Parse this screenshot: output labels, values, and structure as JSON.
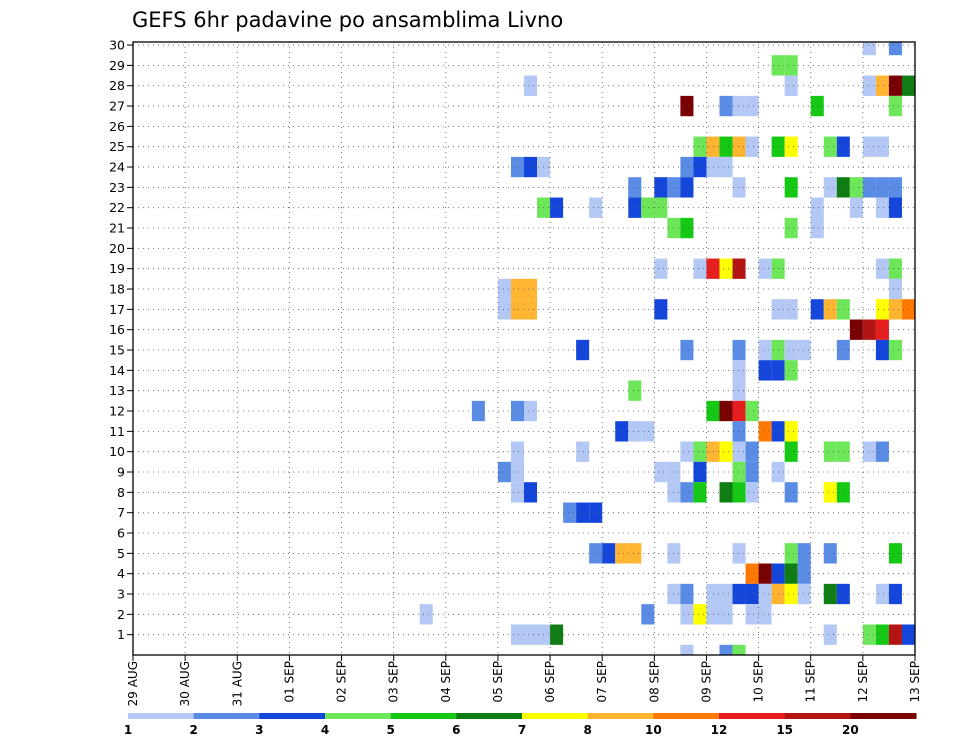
{
  "chart_data": {
    "type": "heatmap",
    "title": "GEFS 6hr padavine po ansamblima Livno",
    "xlabel": "",
    "ylabel": "",
    "x_tick_labels": [
      "29 AUG",
      "30 AUG",
      "31 AUG",
      "01 SEP",
      "02 SEP",
      "03 SEP",
      "04 SEP",
      "05 SEP",
      "06 SEP",
      "07 SEP",
      "08 SEP",
      "09 SEP",
      "10 SEP",
      "11 SEP",
      "12 SEP",
      "13 SEP"
    ],
    "x_range_steps": [
      0,
      60
    ],
    "y_tick_labels": [
      "1",
      "2",
      "3",
      "4",
      "5",
      "6",
      "7",
      "8",
      "9",
      "10",
      "11",
      "12",
      "13",
      "14",
      "15",
      "16",
      "17",
      "18",
      "19",
      "20",
      "21",
      "22",
      "23",
      "24",
      "25",
      "26",
      "27",
      "28",
      "29",
      "30"
    ],
    "y_range": [
      0,
      30
    ],
    "grid": true,
    "time_step_hours": 6,
    "levels": [
      "1",
      "2",
      "3",
      "4",
      "5",
      "6",
      "7",
      "8",
      "10",
      "12",
      "15",
      "20"
    ],
    "level_colors": [
      "#b4c8f5",
      "#5a8ce6",
      "#1446dc",
      "#6ee65a",
      "#14c814",
      "#0f7d14",
      "#ffff00",
      "#ffb432",
      "#ff7800",
      "#e61e1e",
      "#b41414",
      "#780000"
    ],
    "cells": [
      {
        "m": 30,
        "t": 57,
        "c": 0
      },
      {
        "m": 30,
        "t": 59,
        "c": 1
      },
      {
        "m": 29,
        "t": 50,
        "c": 3
      },
      {
        "m": 29,
        "t": 51,
        "c": 3
      },
      {
        "m": 28,
        "t": 31,
        "c": 0
      },
      {
        "m": 28,
        "t": 51,
        "c": 0
      },
      {
        "m": 28,
        "t": 57,
        "c": 0
      },
      {
        "m": 28,
        "t": 58,
        "c": 7
      },
      {
        "m": 28,
        "t": 59,
        "c": 11
      },
      {
        "m": 28,
        "t": 60,
        "c": 5
      },
      {
        "m": 27,
        "t": 43,
        "c": 11
      },
      {
        "m": 27,
        "t": 46,
        "c": 1
      },
      {
        "m": 27,
        "t": 47,
        "c": 0
      },
      {
        "m": 27,
        "t": 48,
        "c": 0
      },
      {
        "m": 27,
        "t": 53,
        "c": 4
      },
      {
        "m": 27,
        "t": 59,
        "c": 3
      },
      {
        "m": 25,
        "t": 44,
        "c": 3
      },
      {
        "m": 25,
        "t": 45,
        "c": 7
      },
      {
        "m": 25,
        "t": 46,
        "c": 4
      },
      {
        "m": 25,
        "t": 47,
        "c": 7
      },
      {
        "m": 25,
        "t": 48,
        "c": 0
      },
      {
        "m": 25,
        "t": 50,
        "c": 4
      },
      {
        "m": 25,
        "t": 51,
        "c": 6
      },
      {
        "m": 25,
        "t": 54,
        "c": 3
      },
      {
        "m": 25,
        "t": 55,
        "c": 2
      },
      {
        "m": 25,
        "t": 57,
        "c": 0
      },
      {
        "m": 25,
        "t": 58,
        "c": 0
      },
      {
        "m": 24,
        "t": 30,
        "c": 1
      },
      {
        "m": 24,
        "t": 31,
        "c": 2
      },
      {
        "m": 24,
        "t": 32,
        "c": 0
      },
      {
        "m": 24,
        "t": 43,
        "c": 1
      },
      {
        "m": 24,
        "t": 44,
        "c": 2
      },
      {
        "m": 24,
        "t": 45,
        "c": 0
      },
      {
        "m": 24,
        "t": 46,
        "c": 0
      },
      {
        "m": 23,
        "t": 39,
        "c": 1
      },
      {
        "m": 23,
        "t": 41,
        "c": 2
      },
      {
        "m": 23,
        "t": 42,
        "c": 1
      },
      {
        "m": 23,
        "t": 43,
        "c": 2
      },
      {
        "m": 23,
        "t": 47,
        "c": 0
      },
      {
        "m": 23,
        "t": 51,
        "c": 4
      },
      {
        "m": 23,
        "t": 54,
        "c": 0
      },
      {
        "m": 23,
        "t": 55,
        "c": 5
      },
      {
        "m": 23,
        "t": 56,
        "c": 3
      },
      {
        "m": 23,
        "t": 57,
        "c": 1
      },
      {
        "m": 23,
        "t": 58,
        "c": 1
      },
      {
        "m": 23,
        "t": 59,
        "c": 1
      },
      {
        "m": 22,
        "t": 32,
        "c": 3
      },
      {
        "m": 22,
        "t": 33,
        "c": 2
      },
      {
        "m": 22,
        "t": 36,
        "c": 0
      },
      {
        "m": 22,
        "t": 39,
        "c": 2
      },
      {
        "m": 22,
        "t": 40,
        "c": 3
      },
      {
        "m": 22,
        "t": 41,
        "c": 3
      },
      {
        "m": 22,
        "t": 53,
        "c": 0
      },
      {
        "m": 22,
        "t": 56,
        "c": 0
      },
      {
        "m": 22,
        "t": 58,
        "c": 0
      },
      {
        "m": 22,
        "t": 59,
        "c": 2
      },
      {
        "m": 21,
        "t": 42,
        "c": 3
      },
      {
        "m": 21,
        "t": 43,
        "c": 4
      },
      {
        "m": 21,
        "t": 51,
        "c": 3
      },
      {
        "m": 21,
        "t": 53,
        "c": 0
      },
      {
        "m": 19,
        "t": 41,
        "c": 0
      },
      {
        "m": 19,
        "t": 44,
        "c": 0
      },
      {
        "m": 19,
        "t": 45,
        "c": 9
      },
      {
        "m": 19,
        "t": 46,
        "c": 6
      },
      {
        "m": 19,
        "t": 47,
        "c": 10
      },
      {
        "m": 19,
        "t": 49,
        "c": 0
      },
      {
        "m": 19,
        "t": 50,
        "c": 3
      },
      {
        "m": 19,
        "t": 58,
        "c": 0
      },
      {
        "m": 19,
        "t": 59,
        "c": 3
      },
      {
        "m": 18,
        "t": 29,
        "c": 0
      },
      {
        "m": 18,
        "t": 30,
        "c": 7
      },
      {
        "m": 18,
        "t": 31,
        "c": 7
      },
      {
        "m": 18,
        "t": 59,
        "c": 0
      },
      {
        "m": 17,
        "t": 29,
        "c": 0
      },
      {
        "m": 17,
        "t": 30,
        "c": 7
      },
      {
        "m": 17,
        "t": 31,
        "c": 7
      },
      {
        "m": 17,
        "t": 41,
        "c": 2
      },
      {
        "m": 17,
        "t": 50,
        "c": 0
      },
      {
        "m": 17,
        "t": 51,
        "c": 0
      },
      {
        "m": 17,
        "t": 53,
        "c": 2
      },
      {
        "m": 17,
        "t": 54,
        "c": 7
      },
      {
        "m": 17,
        "t": 55,
        "c": 3
      },
      {
        "m": 17,
        "t": 58,
        "c": 6
      },
      {
        "m": 17,
        "t": 59,
        "c": 7
      },
      {
        "m": 17,
        "t": 60,
        "c": 8
      },
      {
        "m": 16,
        "t": 56,
        "c": 11
      },
      {
        "m": 16,
        "t": 57,
        "c": 10
      },
      {
        "m": 16,
        "t": 58,
        "c": 9
      },
      {
        "m": 15,
        "t": 35,
        "c": 2
      },
      {
        "m": 15,
        "t": 43,
        "c": 1
      },
      {
        "m": 15,
        "t": 47,
        "c": 1
      },
      {
        "m": 15,
        "t": 49,
        "c": 0
      },
      {
        "m": 15,
        "t": 50,
        "c": 3
      },
      {
        "m": 15,
        "t": 51,
        "c": 0
      },
      {
        "m": 15,
        "t": 52,
        "c": 0
      },
      {
        "m": 15,
        "t": 55,
        "c": 1
      },
      {
        "m": 15,
        "t": 58,
        "c": 2
      },
      {
        "m": 15,
        "t": 59,
        "c": 3
      },
      {
        "m": 14,
        "t": 47,
        "c": 0
      },
      {
        "m": 14,
        "t": 49,
        "c": 2
      },
      {
        "m": 14,
        "t": 50,
        "c": 2
      },
      {
        "m": 14,
        "t": 51,
        "c": 3
      },
      {
        "m": 13,
        "t": 39,
        "c": 3
      },
      {
        "m": 13,
        "t": 47,
        "c": 0
      },
      {
        "m": 12,
        "t": 27,
        "c": 1
      },
      {
        "m": 12,
        "t": 30,
        "c": 1
      },
      {
        "m": 12,
        "t": 31,
        "c": 0
      },
      {
        "m": 12,
        "t": 45,
        "c": 4
      },
      {
        "m": 12,
        "t": 46,
        "c": 11
      },
      {
        "m": 12,
        "t": 47,
        "c": 9
      },
      {
        "m": 12,
        "t": 48,
        "c": 3
      },
      {
        "m": 11,
        "t": 38,
        "c": 2
      },
      {
        "m": 11,
        "t": 39,
        "c": 0
      },
      {
        "m": 11,
        "t": 40,
        "c": 0
      },
      {
        "m": 11,
        "t": 47,
        "c": 1
      },
      {
        "m": 11,
        "t": 49,
        "c": 8
      },
      {
        "m": 11,
        "t": 50,
        "c": 2
      },
      {
        "m": 11,
        "t": 51,
        "c": 6
      },
      {
        "m": 10,
        "t": 30,
        "c": 0
      },
      {
        "m": 10,
        "t": 35,
        "c": 0
      },
      {
        "m": 10,
        "t": 43,
        "c": 0
      },
      {
        "m": 10,
        "t": 44,
        "c": 3
      },
      {
        "m": 10,
        "t": 45,
        "c": 7
      },
      {
        "m": 10,
        "t": 46,
        "c": 6
      },
      {
        "m": 10,
        "t": 47,
        "c": 0
      },
      {
        "m": 10,
        "t": 48,
        "c": 1
      },
      {
        "m": 10,
        "t": 51,
        "c": 4
      },
      {
        "m": 10,
        "t": 54,
        "c": 3
      },
      {
        "m": 10,
        "t": 55,
        "c": 3
      },
      {
        "m": 10,
        "t": 57,
        "c": 0
      },
      {
        "m": 10,
        "t": 58,
        "c": 1
      },
      {
        "m": 9,
        "t": 29,
        "c": 1
      },
      {
        "m": 9,
        "t": 30,
        "c": 0
      },
      {
        "m": 9,
        "t": 41,
        "c": 0
      },
      {
        "m": 9,
        "t": 42,
        "c": 0
      },
      {
        "m": 9,
        "t": 44,
        "c": 2
      },
      {
        "m": 9,
        "t": 47,
        "c": 3
      },
      {
        "m": 9,
        "t": 48,
        "c": 1
      },
      {
        "m": 9,
        "t": 50,
        "c": 0
      },
      {
        "m": 8,
        "t": 30,
        "c": 0
      },
      {
        "m": 8,
        "t": 31,
        "c": 2
      },
      {
        "m": 8,
        "t": 42,
        "c": 0
      },
      {
        "m": 8,
        "t": 43,
        "c": 1
      },
      {
        "m": 8,
        "t": 44,
        "c": 4
      },
      {
        "m": 8,
        "t": 46,
        "c": 5
      },
      {
        "m": 8,
        "t": 47,
        "c": 4
      },
      {
        "m": 8,
        "t": 48,
        "c": 0
      },
      {
        "m": 8,
        "t": 51,
        "c": 1
      },
      {
        "m": 8,
        "t": 54,
        "c": 6
      },
      {
        "m": 8,
        "t": 55,
        "c": 4
      },
      {
        "m": 7,
        "t": 34,
        "c": 1
      },
      {
        "m": 7,
        "t": 35,
        "c": 2
      },
      {
        "m": 7,
        "t": 36,
        "c": 2
      },
      {
        "m": 5,
        "t": 36,
        "c": 1
      },
      {
        "m": 5,
        "t": 37,
        "c": 2
      },
      {
        "m": 5,
        "t": 38,
        "c": 7
      },
      {
        "m": 5,
        "t": 39,
        "c": 7
      },
      {
        "m": 5,
        "t": 42,
        "c": 0
      },
      {
        "m": 5,
        "t": 47,
        "c": 0
      },
      {
        "m": 5,
        "t": 51,
        "c": 3
      },
      {
        "m": 5,
        "t": 52,
        "c": 1
      },
      {
        "m": 5,
        "t": 54,
        "c": 1
      },
      {
        "m": 5,
        "t": 59,
        "c": 4
      },
      {
        "m": 4,
        "t": 48,
        "c": 8
      },
      {
        "m": 4,
        "t": 49,
        "c": 11
      },
      {
        "m": 4,
        "t": 50,
        "c": 2
      },
      {
        "m": 4,
        "t": 51,
        "c": 5
      },
      {
        "m": 4,
        "t": 52,
        "c": 1
      },
      {
        "m": 3,
        "t": 42,
        "c": 0
      },
      {
        "m": 3,
        "t": 43,
        "c": 1
      },
      {
        "m": 3,
        "t": 45,
        "c": 0
      },
      {
        "m": 3,
        "t": 46,
        "c": 0
      },
      {
        "m": 3,
        "t": 47,
        "c": 2
      },
      {
        "m": 3,
        "t": 48,
        "c": 2
      },
      {
        "m": 3,
        "t": 49,
        "c": 0
      },
      {
        "m": 3,
        "t": 50,
        "c": 7
      },
      {
        "m": 3,
        "t": 51,
        "c": 6
      },
      {
        "m": 3,
        "t": 52,
        "c": 0
      },
      {
        "m": 3,
        "t": 54,
        "c": 5
      },
      {
        "m": 3,
        "t": 55,
        "c": 2
      },
      {
        "m": 3,
        "t": 58,
        "c": 0
      },
      {
        "m": 3,
        "t": 59,
        "c": 2
      },
      {
        "m": 2,
        "t": 23,
        "c": 0
      },
      {
        "m": 2,
        "t": 40,
        "c": 1
      },
      {
        "m": 2,
        "t": 43,
        "c": 0
      },
      {
        "m": 2,
        "t": 44,
        "c": 6
      },
      {
        "m": 2,
        "t": 45,
        "c": 0
      },
      {
        "m": 2,
        "t": 46,
        "c": 0
      },
      {
        "m": 2,
        "t": 48,
        "c": 0
      },
      {
        "m": 2,
        "t": 49,
        "c": 0
      },
      {
        "m": 1,
        "t": 30,
        "c": 0
      },
      {
        "m": 1,
        "t": 31,
        "c": 0
      },
      {
        "m": 1,
        "t": 32,
        "c": 0
      },
      {
        "m": 1,
        "t": 33,
        "c": 5
      },
      {
        "m": 1,
        "t": 54,
        "c": 0
      },
      {
        "m": 1,
        "t": 57,
        "c": 3
      },
      {
        "m": 1,
        "t": 58,
        "c": 4
      },
      {
        "m": 1,
        "t": 59,
        "c": 10
      },
      {
        "m": 1,
        "t": 60,
        "c": 2
      },
      {
        "m": 0,
        "t": 43,
        "c": 0
      },
      {
        "m": 0,
        "t": 46,
        "c": 1
      },
      {
        "m": 0,
        "t": 47,
        "c": 3
      }
    ]
  }
}
